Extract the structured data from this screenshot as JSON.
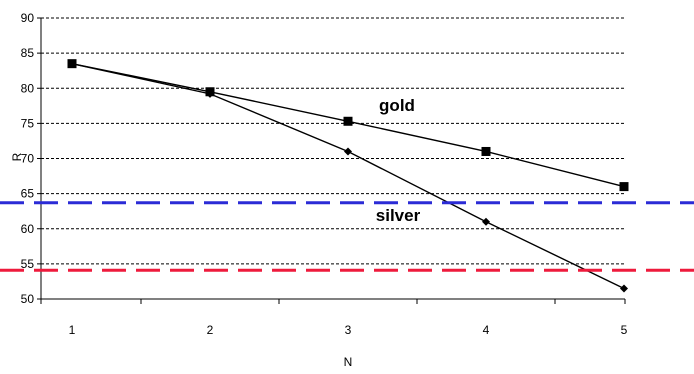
{
  "chart_data": {
    "type": "line",
    "title": "",
    "xlabel": "N",
    "ylabel": "R",
    "x": [
      1,
      2,
      3,
      4,
      5
    ],
    "xlim": [
      1,
      5
    ],
    "ylim": [
      50,
      90
    ],
    "yticks": [
      50,
      55,
      60,
      65,
      70,
      75,
      80,
      85,
      90
    ],
    "xticks": [
      1,
      2,
      3,
      4,
      5
    ],
    "grid": "horizontal-dashed",
    "legend": "none",
    "series": [
      {
        "name": "gold",
        "values": [
          83.5,
          79.5,
          75.3,
          71.0,
          66.0
        ],
        "marker": "square",
        "color": "#000000"
      },
      {
        "name": "silver",
        "values": [
          83.5,
          79.2,
          71.0,
          61.0,
          51.5
        ],
        "marker": "diamond",
        "color": "#000000"
      }
    ],
    "reference_lines": [
      {
        "value": 63.7,
        "color": "#2b2bd6"
      },
      {
        "value": 54.1,
        "color": "#ee1a3c"
      }
    ]
  }
}
